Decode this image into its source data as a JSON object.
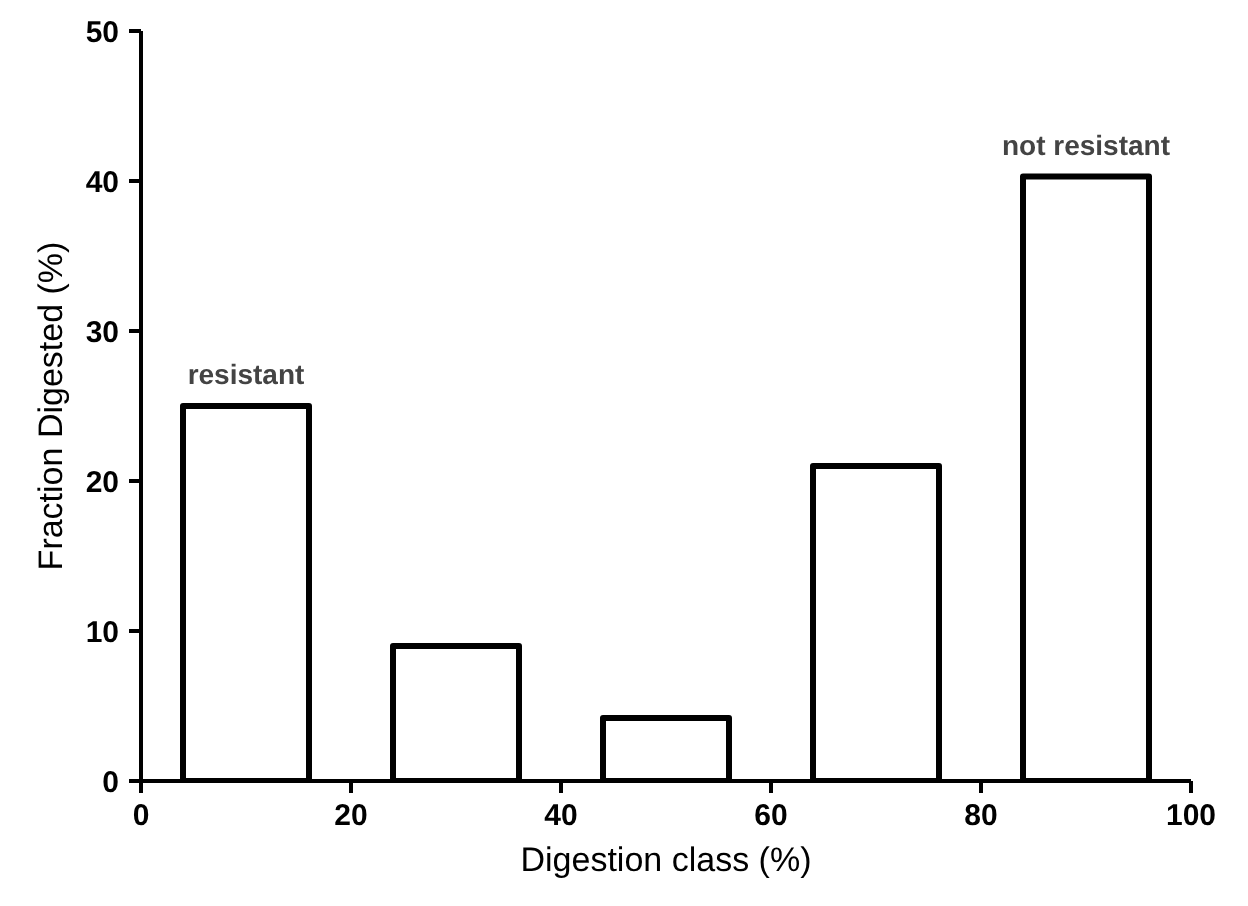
{
  "chart_data": {
    "type": "bar",
    "xlabel": "Digestion class (%)",
    "ylabel": "Fraction Digested (%)",
    "x": [
      10,
      30,
      50,
      70,
      90
    ],
    "values": [
      25,
      9,
      4.2,
      21,
      40.3
    ],
    "color": "#000000",
    "xlim": [
      0,
      100
    ],
    "xticks": [
      0,
      20,
      40,
      60,
      80,
      100
    ],
    "ylim": [
      0,
      50
    ],
    "yticks": [
      0,
      10,
      20,
      30,
      40,
      50
    ],
    "grid": false,
    "annotations": [
      {
        "text": "resistant",
        "x": 10,
        "y": 25
      },
      {
        "text": "not resistant",
        "x": 90,
        "y": 40.3
      }
    ]
  }
}
